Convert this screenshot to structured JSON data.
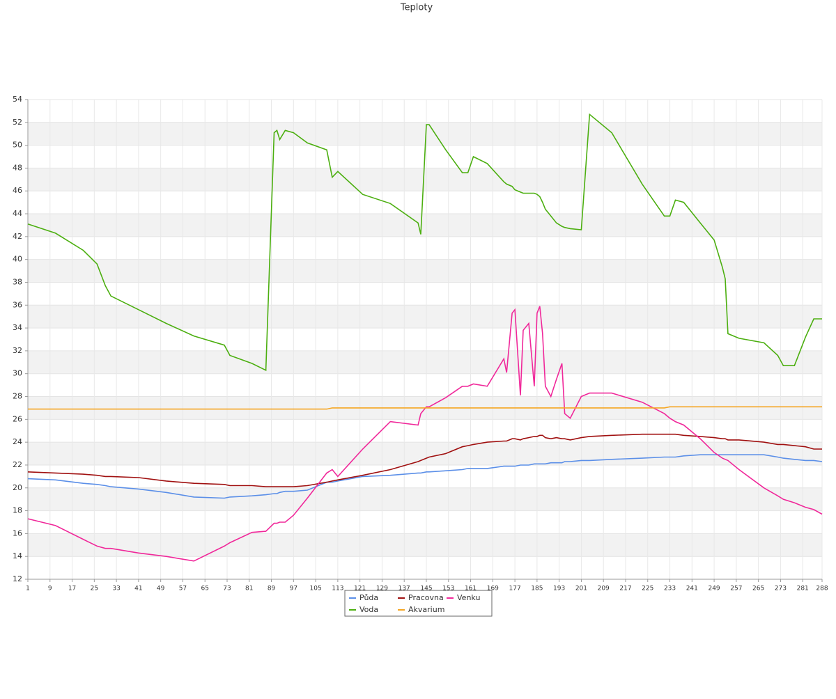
{
  "chart_data": {
    "type": "line",
    "title": "Teploty",
    "x": [
      1,
      11,
      21,
      26,
      29,
      31,
      41,
      51,
      61,
      72,
      74,
      82,
      87,
      90,
      91,
      92,
      94,
      97,
      102,
      109,
      111,
      113,
      122,
      132,
      142,
      143,
      145,
      146,
      152,
      158,
      160,
      162,
      167,
      173,
      174,
      176,
      177,
      179,
      180,
      182,
      184,
      185,
      186,
      187,
      188,
      190,
      192,
      194,
      195,
      197,
      201,
      204,
      212,
      223,
      231,
      233,
      235,
      238,
      244,
      249,
      252,
      253,
      254,
      258,
      267,
      272,
      274,
      278,
      282,
      285,
      288
    ],
    "series": [
      {
        "name": "Půda",
        "color": "#5b8fe8",
        "values": [
          20.8,
          20.7,
          20.4,
          20.3,
          20.2,
          20.1,
          19.9,
          19.6,
          19.2,
          19.1,
          19.2,
          19.3,
          19.4,
          19.5,
          19.5,
          19.6,
          19.7,
          19.7,
          19.8,
          20.5,
          20.5,
          20.6,
          21.0,
          21.1,
          21.3,
          21.3,
          21.4,
          21.4,
          21.5,
          21.6,
          21.7,
          21.7,
          21.7,
          21.9,
          21.9,
          21.9,
          21.9,
          22.0,
          22.0,
          22.0,
          22.1,
          22.1,
          22.1,
          22.1,
          22.1,
          22.2,
          22.2,
          22.2,
          22.3,
          22.3,
          22.4,
          22.4,
          22.5,
          22.6,
          22.7,
          22.7,
          22.7,
          22.8,
          22.9,
          22.9,
          22.9,
          22.9,
          22.9,
          22.9,
          22.9,
          22.7,
          22.6,
          22.5,
          22.4,
          22.4,
          22.3
        ]
      },
      {
        "name": "Pracovna",
        "color": "#a01010",
        "values": [
          21.4,
          21.3,
          21.2,
          21.1,
          21.0,
          21.0,
          20.9,
          20.6,
          20.4,
          20.3,
          20.2,
          20.2,
          20.1,
          20.1,
          20.1,
          20.1,
          20.1,
          20.1,
          20.2,
          20.5,
          20.6,
          20.7,
          21.1,
          21.6,
          22.3,
          22.4,
          22.6,
          22.7,
          23.0,
          23.6,
          23.7,
          23.8,
          24.0,
          24.1,
          24.1,
          24.3,
          24.3,
          24.2,
          24.3,
          24.4,
          24.5,
          24.5,
          24.6,
          24.6,
          24.4,
          24.3,
          24.4,
          24.3,
          24.3,
          24.2,
          24.4,
          24.5,
          24.6,
          24.7,
          24.7,
          24.7,
          24.7,
          24.6,
          24.5,
          24.4,
          24.3,
          24.3,
          24.2,
          24.2,
          24.0,
          23.8,
          23.8,
          23.7,
          23.6,
          23.4,
          23.4
        ]
      },
      {
        "name": "Venku",
        "color": "#f0289a",
        "values": [
          17.3,
          16.7,
          15.5,
          14.9,
          14.7,
          14.7,
          14.3,
          14.0,
          13.6,
          14.9,
          15.2,
          16.1,
          16.2,
          16.9,
          16.9,
          17.0,
          17.0,
          17.6,
          19.1,
          21.3,
          21.6,
          21.0,
          23.4,
          25.8,
          25.5,
          26.5,
          27.1,
          27.1,
          27.9,
          28.9,
          28.9,
          29.1,
          28.9,
          31.3,
          30.1,
          35.3,
          35.6,
          28.1,
          33.8,
          34.4,
          28.9,
          35.3,
          35.9,
          33.5,
          28.9,
          28.0,
          29.5,
          30.9,
          26.5,
          26.1,
          28.0,
          28.3,
          28.3,
          27.5,
          26.5,
          26.1,
          25.8,
          25.5,
          24.3,
          23.1,
          22.6,
          22.5,
          22.4,
          21.6,
          20.0,
          19.3,
          19.0,
          18.7,
          18.3,
          18.1,
          17.7
        ]
      },
      {
        "name": "Voda",
        "color": "#4caf10",
        "values": [
          43.1,
          42.3,
          40.8,
          39.6,
          37.7,
          36.8,
          35.6,
          34.4,
          33.3,
          32.5,
          31.6,
          30.9,
          30.3,
          51.1,
          51.3,
          50.5,
          51.3,
          51.1,
          50.2,
          49.6,
          47.2,
          47.7,
          45.7,
          44.9,
          43.2,
          42.2,
          51.8,
          51.8,
          49.6,
          47.6,
          47.6,
          49.0,
          48.4,
          46.8,
          46.6,
          46.4,
          46.1,
          45.9,
          45.8,
          45.8,
          45.8,
          45.7,
          45.5,
          45.0,
          44.4,
          43.8,
          43.2,
          42.9,
          42.8,
          42.7,
          42.6,
          52.7,
          51.1,
          46.6,
          43.8,
          43.8,
          45.2,
          45.0,
          43.2,
          41.7,
          39.3,
          38.3,
          33.5,
          33.1,
          32.7,
          31.6,
          30.7,
          30.7,
          33.2,
          34.8,
          34.8
        ]
      },
      {
        "name": "Akvarium",
        "color": "#f5a623",
        "values": [
          26.9,
          26.9,
          26.9,
          26.9,
          26.9,
          26.9,
          26.9,
          26.9,
          26.9,
          26.9,
          26.9,
          26.9,
          26.9,
          26.9,
          26.9,
          26.9,
          26.9,
          26.9,
          26.9,
          26.9,
          27.0,
          27.0,
          27.0,
          27.0,
          27.0,
          27.0,
          27.0,
          27.0,
          27.0,
          27.0,
          27.0,
          27.0,
          27.0,
          27.0,
          27.0,
          27.0,
          27.0,
          27.0,
          27.0,
          27.0,
          27.0,
          27.0,
          27.0,
          27.0,
          27.0,
          27.0,
          27.0,
          27.0,
          27.0,
          27.0,
          27.0,
          27.0,
          27.0,
          27.0,
          27.0,
          27.1,
          27.1,
          27.1,
          27.1,
          27.1,
          27.1,
          27.1,
          27.1,
          27.1,
          27.1,
          27.1,
          27.1,
          27.1,
          27.1,
          27.1,
          27.1
        ]
      }
    ],
    "xlim": [
      1,
      288
    ],
    "xticks": [
      1,
      9,
      17,
      25,
      33,
      41,
      49,
      57,
      65,
      73,
      81,
      89,
      97,
      105,
      113,
      121,
      129,
      137,
      145,
      153,
      161,
      169,
      177,
      185,
      193,
      201,
      209,
      217,
      225,
      233,
      241,
      249,
      257,
      265,
      273,
      281,
      288
    ],
    "ylim": [
      12,
      54
    ],
    "yticks": [
      12,
      14,
      16,
      18,
      20,
      22,
      24,
      26,
      28,
      30,
      32,
      34,
      36,
      38,
      40,
      42,
      44,
      46,
      48,
      50,
      52,
      54
    ],
    "grid": true
  }
}
